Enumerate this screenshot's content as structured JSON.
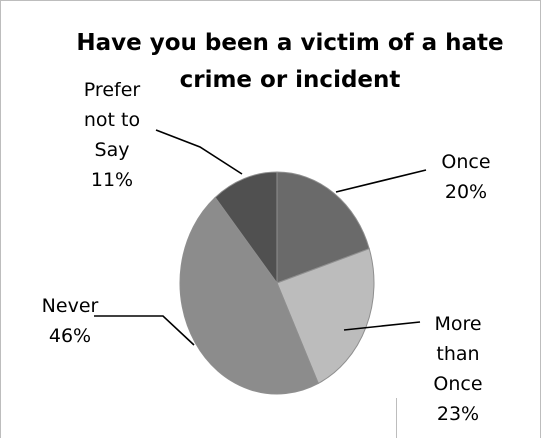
{
  "chart_data": {
    "type": "pie",
    "title_lines": [
      "Have you been a victim of a hate",
      "crime or incident"
    ],
    "slices": [
      {
        "label_lines": [
          "Once"
        ],
        "percent_label": "20%",
        "value": 20,
        "color": "#6a6a6a"
      },
      {
        "label_lines": [
          "More",
          "than",
          "Once"
        ],
        "percent_label": "23%",
        "value": 23,
        "color": "#bcbcbc"
      },
      {
        "label_lines": [
          "Never"
        ],
        "percent_label": "46%",
        "value": 46,
        "color": "#8c8c8c"
      },
      {
        "label_lines": [
          "Prefer",
          "not to",
          "Say"
        ],
        "percent_label": "11%",
        "value": 11,
        "color": "#505050"
      }
    ],
    "start_angle": "12 o'clock",
    "direction": "clockwise",
    "legend": "none",
    "data_labels": "outside with leader lines"
  }
}
